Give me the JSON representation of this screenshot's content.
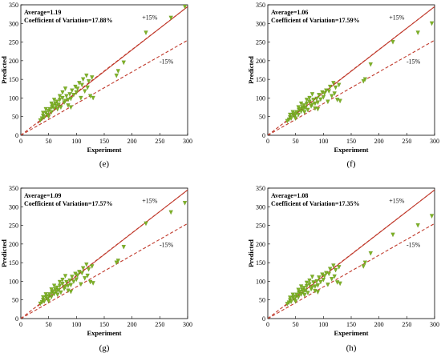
{
  "figure": {
    "style": {
      "marker_color": "#7fb227",
      "marker_edge": "#5a8a14",
      "line_color": "#c0392b",
      "axis_color": "#000000"
    }
  },
  "chart_data": [
    {
      "type": "scatter",
      "panel_label": "(e)",
      "xlabel": "Experiment",
      "ylabel": "Predicted",
      "xlim": [
        0,
        300
      ],
      "ylim": [
        0,
        350
      ],
      "xticks": [
        0,
        50,
        100,
        150,
        200,
        250,
        300
      ],
      "yticks": [
        0,
        50,
        100,
        150,
        200,
        250,
        300,
        350
      ],
      "stats": {
        "average": "Average=1.19",
        "cov": "Coefficient of Variation=17.88%"
      },
      "bands": {
        "upper_label": "+15%",
        "lower_label": "-15%",
        "upper_factor": 1.15,
        "lower_factor": 0.85
      },
      "fit_line": {
        "x": [
          30,
          300
        ],
        "y": [
          32,
          345
        ]
      },
      "grid": false,
      "points": [
        [
          35,
          40
        ],
        [
          38,
          45
        ],
        [
          40,
          52
        ],
        [
          42,
          48
        ],
        [
          45,
          60
        ],
        [
          48,
          55
        ],
        [
          50,
          65
        ],
        [
          52,
          70
        ],
        [
          55,
          62
        ],
        [
          56,
          75
        ],
        [
          58,
          80
        ],
        [
          60,
          72
        ],
        [
          62,
          85
        ],
        [
          64,
          78
        ],
        [
          65,
          90
        ],
        [
          66,
          70
        ],
        [
          68,
          82
        ],
        [
          70,
          95
        ],
        [
          72,
          75
        ],
        [
          75,
          100
        ],
        [
          78,
          88
        ],
        [
          80,
          92
        ],
        [
          82,
          105
        ],
        [
          85,
          80
        ],
        [
          88,
          110
        ],
        [
          90,
          98
        ],
        [
          92,
          120
        ],
        [
          95,
          108
        ],
        [
          98,
          130
        ],
        [
          100,
          115
        ],
        [
          102,
          125
        ],
        [
          105,
          140
        ],
        [
          108,
          100
        ],
        [
          110,
          135
        ],
        [
          112,
          150
        ],
        [
          115,
          118
        ],
        [
          118,
          160
        ],
        [
          120,
          128
        ],
        [
          122,
          145
        ],
        [
          125,
          105
        ],
        [
          128,
          155
        ],
        [
          130,
          100
        ],
        [
          172,
          160
        ],
        [
          175,
          172
        ],
        [
          185,
          195
        ],
        [
          225,
          275
        ],
        [
          270,
          315
        ],
        [
          295,
          345
        ],
        [
          45,
          70
        ],
        [
          55,
          85
        ],
        [
          60,
          95
        ],
        [
          70,
          105
        ],
        [
          75,
          115
        ],
        [
          80,
          125
        ],
        [
          85,
          95
        ],
        [
          90,
          75
        ],
        [
          40,
          60
        ],
        [
          50,
          50
        ]
      ]
    },
    {
      "type": "scatter",
      "panel_label": "(f)",
      "xlabel": "Experiment",
      "ylabel": "Predicted",
      "xlim": [
        0,
        300
      ],
      "ylim": [
        0,
        350
      ],
      "xticks": [
        0,
        50,
        100,
        150,
        200,
        250,
        300
      ],
      "yticks": [
        0,
        50,
        100,
        150,
        200,
        250,
        300,
        350
      ],
      "stats": {
        "average": "Average=1.06",
        "cov": "Coefficient of Variation=17.59%"
      },
      "bands": {
        "upper_label": "+15%",
        "lower_label": "-15%",
        "upper_factor": 1.15,
        "lower_factor": 0.85
      },
      "fit_line": {
        "x": [
          30,
          300
        ],
        "y": [
          33,
          345
        ]
      },
      "grid": false,
      "points": [
        [
          35,
          38
        ],
        [
          38,
          42
        ],
        [
          40,
          48
        ],
        [
          42,
          45
        ],
        [
          45,
          55
        ],
        [
          48,
          50
        ],
        [
          50,
          58
        ],
        [
          52,
          62
        ],
        [
          55,
          55
        ],
        [
          56,
          68
        ],
        [
          58,
          70
        ],
        [
          60,
          64
        ],
        [
          62,
          75
        ],
        [
          64,
          70
        ],
        [
          65,
          80
        ],
        [
          66,
          62
        ],
        [
          68,
          74
        ],
        [
          70,
          85
        ],
        [
          72,
          68
        ],
        [
          75,
          90
        ],
        [
          78,
          78
        ],
        [
          80,
          82
        ],
        [
          82,
          95
        ],
        [
          85,
          72
        ],
        [
          88,
          98
        ],
        [
          90,
          88
        ],
        [
          92,
          108
        ],
        [
          95,
          96
        ],
        [
          98,
          115
        ],
        [
          100,
          102
        ],
        [
          102,
          112
        ],
        [
          105,
          120
        ],
        [
          108,
          90
        ],
        [
          110,
          118
        ],
        [
          112,
          130
        ],
        [
          115,
          105
        ],
        [
          118,
          140
        ],
        [
          120,
          112
        ],
        [
          122,
          128
        ],
        [
          125,
          95
        ],
        [
          128,
          135
        ],
        [
          130,
          92
        ],
        [
          172,
          145
        ],
        [
          175,
          150
        ],
        [
          185,
          190
        ],
        [
          225,
          250
        ],
        [
          270,
          275
        ],
        [
          295,
          300
        ],
        [
          45,
          62
        ],
        [
          55,
          75
        ],
        [
          60,
          85
        ],
        [
          70,
          95
        ],
        [
          75,
          100
        ],
        [
          80,
          110
        ],
        [
          85,
          85
        ],
        [
          90,
          70
        ],
        [
          40,
          55
        ],
        [
          50,
          45
        ]
      ]
    },
    {
      "type": "scatter",
      "panel_label": "(g)",
      "xlabel": "Experiment",
      "ylabel": "Predicted",
      "xlim": [
        0,
        300
      ],
      "ylim": [
        0,
        350
      ],
      "xticks": [
        0,
        50,
        100,
        150,
        200,
        250,
        300
      ],
      "yticks": [
        0,
        50,
        100,
        150,
        200,
        250,
        300,
        350
      ],
      "stats": {
        "average": "Average=1.09",
        "cov": "Coefficient of Variation=17.57%"
      },
      "bands": {
        "upper_label": "+15%",
        "lower_label": "-15%",
        "upper_factor": 1.15,
        "lower_factor": 0.85
      },
      "fit_line": {
        "x": [
          30,
          300
        ],
        "y": [
          33,
          345
        ]
      },
      "grid": false,
      "points": [
        [
          35,
          40
        ],
        [
          38,
          44
        ],
        [
          40,
          50
        ],
        [
          42,
          46
        ],
        [
          45,
          57
        ],
        [
          48,
          52
        ],
        [
          50,
          60
        ],
        [
          52,
          65
        ],
        [
          55,
          58
        ],
        [
          56,
          70
        ],
        [
          58,
          73
        ],
        [
          60,
          66
        ],
        [
          62,
          78
        ],
        [
          64,
          72
        ],
        [
          65,
          83
        ],
        [
          66,
          64
        ],
        [
          68,
          76
        ],
        [
          70,
          88
        ],
        [
          72,
          70
        ],
        [
          75,
          93
        ],
        [
          78,
          80
        ],
        [
          80,
          85
        ],
        [
          82,
          98
        ],
        [
          85,
          75
        ],
        [
          88,
          102
        ],
        [
          90,
          90
        ],
        [
          92,
          112
        ],
        [
          95,
          99
        ],
        [
          98,
          120
        ],
        [
          100,
          105
        ],
        [
          102,
          116
        ],
        [
          105,
          125
        ],
        [
          108,
          92
        ],
        [
          110,
          122
        ],
        [
          112,
          135
        ],
        [
          115,
          108
        ],
        [
          118,
          145
        ],
        [
          120,
          115
        ],
        [
          122,
          132
        ],
        [
          125,
          98
        ],
        [
          128,
          140
        ],
        [
          130,
          95
        ],
        [
          172,
          150
        ],
        [
          175,
          155
        ],
        [
          185,
          192
        ],
        [
          225,
          255
        ],
        [
          270,
          285
        ],
        [
          295,
          310
        ],
        [
          45,
          65
        ],
        [
          55,
          78
        ],
        [
          60,
          88
        ],
        [
          70,
          98
        ],
        [
          75,
          104
        ],
        [
          80,
          114
        ],
        [
          85,
          88
        ],
        [
          90,
          72
        ],
        [
          40,
          57
        ],
        [
          50,
          47
        ]
      ]
    },
    {
      "type": "scatter",
      "panel_label": "(h)",
      "xlabel": "Experiment",
      "ylabel": "Predicted",
      "xlim": [
        0,
        300
      ],
      "ylim": [
        0,
        350
      ],
      "xticks": [
        0,
        50,
        100,
        150,
        200,
        250,
        300
      ],
      "yticks": [
        0,
        50,
        100,
        150,
        200,
        250,
        300,
        350
      ],
      "stats": {
        "average": "Average=1.08",
        "cov": "Coefficient of Variation=17.35%"
      },
      "bands": {
        "upper_label": "+15%",
        "lower_label": "-15%",
        "upper_factor": 1.15,
        "lower_factor": 0.85
      },
      "fit_line": {
        "x": [
          30,
          300
        ],
        "y": [
          33,
          345
        ]
      },
      "grid": false,
      "points": [
        [
          35,
          39
        ],
        [
          38,
          43
        ],
        [
          40,
          49
        ],
        [
          42,
          45
        ],
        [
          45,
          56
        ],
        [
          48,
          51
        ],
        [
          50,
          59
        ],
        [
          52,
          64
        ],
        [
          55,
          57
        ],
        [
          56,
          69
        ],
        [
          58,
          72
        ],
        [
          60,
          65
        ],
        [
          62,
          77
        ],
        [
          64,
          71
        ],
        [
          65,
          82
        ],
        [
          66,
          63
        ],
        [
          68,
          75
        ],
        [
          70,
          87
        ],
        [
          72,
          69
        ],
        [
          75,
          92
        ],
        [
          78,
          79
        ],
        [
          80,
          84
        ],
        [
          82,
          97
        ],
        [
          85,
          74
        ],
        [
          88,
          100
        ],
        [
          90,
          89
        ],
        [
          92,
          110
        ],
        [
          95,
          98
        ],
        [
          98,
          118
        ],
        [
          100,
          104
        ],
        [
          102,
          114
        ],
        [
          105,
          122
        ],
        [
          108,
          91
        ],
        [
          110,
          120
        ],
        [
          112,
          133
        ],
        [
          115,
          106
        ],
        [
          118,
          142
        ],
        [
          120,
          113
        ],
        [
          122,
          130
        ],
        [
          125,
          97
        ],
        [
          128,
          138
        ],
        [
          130,
          94
        ],
        [
          172,
          140
        ],
        [
          175,
          150
        ],
        [
          185,
          175
        ],
        [
          225,
          225
        ],
        [
          270,
          250
        ],
        [
          295,
          275
        ],
        [
          45,
          64
        ],
        [
          55,
          77
        ],
        [
          60,
          86
        ],
        [
          70,
          96
        ],
        [
          75,
          102
        ],
        [
          80,
          112
        ],
        [
          85,
          86
        ],
        [
          90,
          71
        ],
        [
          40,
          56
        ],
        [
          50,
          46
        ]
      ]
    }
  ]
}
